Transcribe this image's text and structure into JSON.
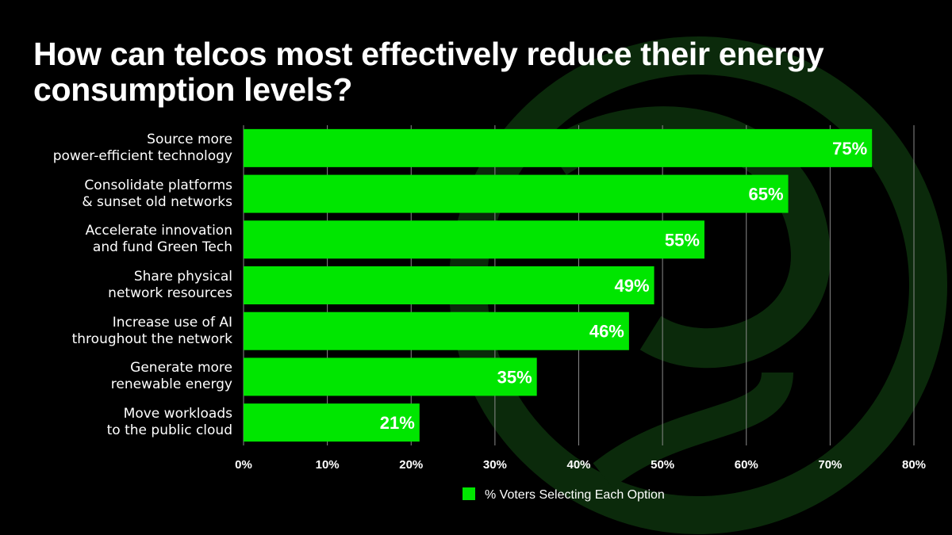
{
  "chart_data": {
    "type": "bar",
    "orientation": "horizontal",
    "title": "How can telcos most effectively reduce their energy consumption levels?",
    "categories": [
      "Source more\npower-efficient technology",
      "Consolidate platforms\n& sunset old networks",
      "Accelerate innovation\nand fund Green Tech",
      "Share physical\nnetwork resources",
      "Increase use of AI\nthroughout the network",
      "Generate more\nrenewable energy",
      "Move workloads\nto the public cloud"
    ],
    "series": [
      {
        "name": "% Voters Selecting Each Option",
        "color": "#00e600",
        "values": [
          75,
          65,
          55,
          49,
          46,
          35,
          21
        ],
        "value_labels": [
          "75%",
          "65%",
          "55%",
          "49%",
          "46%",
          "35%",
          "21%"
        ]
      }
    ],
    "xlim": [
      0,
      80
    ],
    "xticks": [
      {
        "value": 0,
        "label": "0%"
      },
      {
        "value": 10,
        "label": "10%"
      },
      {
        "value": 20,
        "label": "20%"
      },
      {
        "value": 30,
        "label": "30%"
      },
      {
        "value": 40,
        "label": "40%"
      },
      {
        "value": 50,
        "label": "50%"
      },
      {
        "value": 60,
        "label": "60%"
      },
      {
        "value": 70,
        "label": "70%"
      },
      {
        "value": 80,
        "label": "80%"
      }
    ],
    "grid": true,
    "legend": "bottom"
  }
}
